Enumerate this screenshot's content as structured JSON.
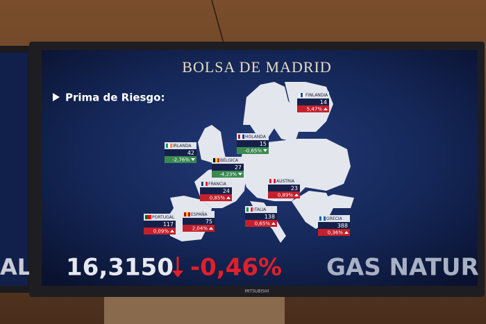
{
  "screen": {
    "title": "BOLSA DE MADRID",
    "subtitle": "Prima de Riesgo:",
    "countries": [
      {
        "name": "FINLANDIA",
        "premium": "14",
        "change": "5,47%"
      },
      {
        "name": "HOLANDA",
        "premium": "15",
        "change": "-0,65%"
      },
      {
        "name": "IRLANDA",
        "premium": "42",
        "change": "-2,76%"
      },
      {
        "name": "BÉLGICA",
        "premium": "27",
        "change": "-4,23%"
      },
      {
        "name": "FRANCIA",
        "premium": "24",
        "change": "0,85%"
      },
      {
        "name": "AUSTRIA",
        "premium": "23",
        "change": "0,89%"
      },
      {
        "name": "PORTUGAL",
        "premium": "117",
        "change": "0,09%"
      },
      {
        "name": "ESPAÑA",
        "premium": "75",
        "change": "2,04%"
      },
      {
        "name": "ITALIA",
        "premium": "138",
        "change": "0,65%"
      },
      {
        "name": "GRECIA",
        "premium": "388",
        "change": "0,36%"
      }
    ],
    "ticker": {
      "value": "16,3150",
      "change": "-0,46%",
      "next": "GAS NATUR"
    },
    "left_screen": "AL",
    "brand": "MITSUBISHI"
  }
}
